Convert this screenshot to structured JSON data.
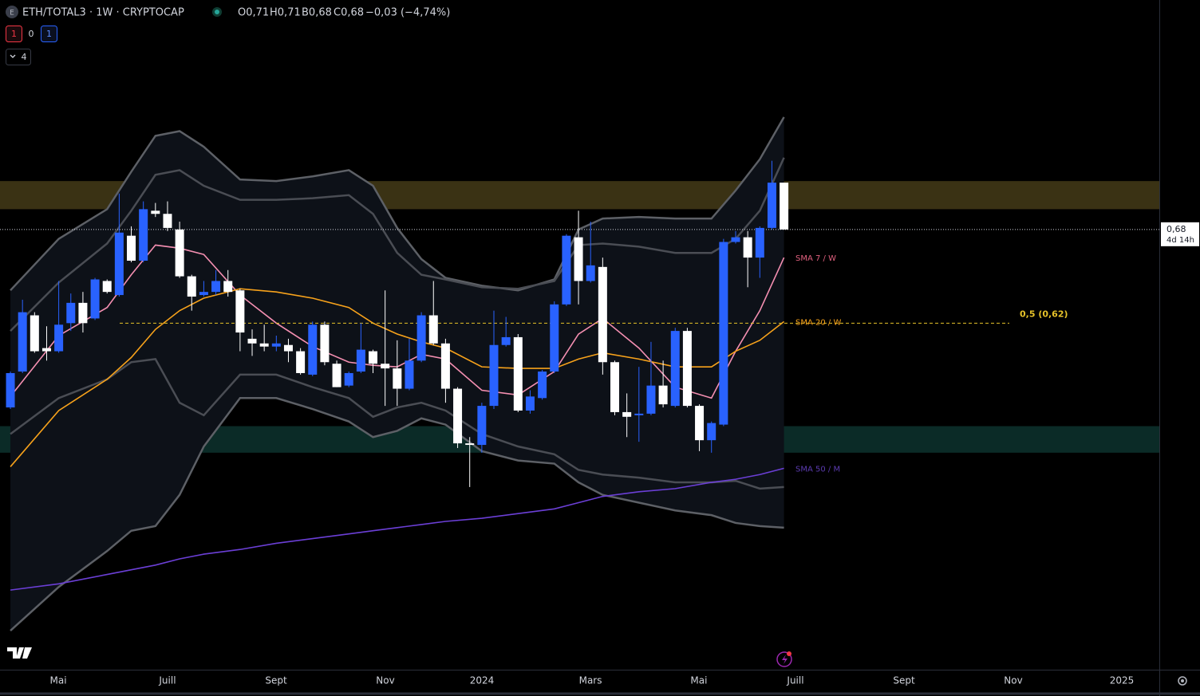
{
  "header": {
    "icon": "E",
    "symbol": "ETH/TOTAL3 · 1W · CRYPTOCAP",
    "ohlc": [
      "O0,71",
      "H0,71",
      "B0,68",
      "C0,68",
      "−0,03 (−4,74%)"
    ],
    "badges": [
      "1",
      "0",
      "1"
    ],
    "collapsed": "4"
  },
  "chart_data": {
    "type": "candlestick",
    "x": [
      0,
      1,
      2,
      3,
      4,
      5,
      6,
      7,
      8,
      9,
      10,
      11,
      12,
      13,
      14,
      15,
      16,
      17,
      18,
      19,
      20,
      21,
      22,
      23,
      24,
      25,
      26,
      27,
      28,
      29,
      30,
      31,
      32,
      33,
      34,
      35,
      36,
      37,
      38,
      39,
      40,
      41,
      42,
      43,
      44,
      45,
      46,
      47,
      48,
      49,
      50,
      51,
      52,
      53,
      54,
      55,
      56,
      57,
      58,
      59,
      60,
      61,
      62,
      63,
      64
    ],
    "open": [
      0.566,
      0.589,
      0.625,
      0.604,
      0.602,
      0.62,
      0.633,
      0.623,
      0.647,
      0.638,
      0.676,
      0.66,
      0.692,
      0.69,
      0.68,
      0.65,
      0.638,
      0.64,
      0.647,
      0.641,
      0.61,
      0.607,
      0.605,
      0.606,
      0.602,
      0.587,
      0.619,
      0.594,
      0.58,
      0.589,
      0.602,
      0.594,
      0.591,
      0.578,
      0.596,
      0.625,
      0.607,
      0.578,
      0.543,
      0.542,
      0.567,
      0.606,
      0.611,
      0.564,
      0.572,
      0.589,
      0.632,
      0.675,
      0.647,
      0.656,
      0.595,
      0.563,
      0.561,
      0.562,
      0.58,
      0.567,
      0.615,
      0.567,
      0.545,
      0.555,
      0.672,
      0.675,
      0.662,
      0.681,
      0.71
    ],
    "high": [
      0.589,
      0.635,
      0.627,
      0.618,
      0.647,
      0.639,
      0.64,
      0.649,
      0.648,
      0.703,
      0.682,
      0.698,
      0.697,
      0.698,
      0.685,
      0.651,
      0.647,
      0.654,
      0.654,
      0.642,
      0.616,
      0.619,
      0.612,
      0.61,
      0.604,
      0.621,
      0.621,
      0.596,
      0.589,
      0.62,
      0.603,
      0.641,
      0.609,
      0.61,
      0.627,
      0.647,
      0.61,
      0.579,
      0.547,
      0.569,
      0.628,
      0.624,
      0.613,
      0.577,
      0.59,
      0.634,
      0.677,
      0.692,
      0.685,
      0.662,
      0.596,
      0.575,
      0.592,
      0.608,
      0.596,
      0.617,
      0.617,
      0.568,
      0.557,
      0.674,
      0.679,
      0.679,
      0.682,
      0.724,
      0.71
    ],
    "low": [
      0.565,
      0.588,
      0.601,
      0.596,
      0.601,
      0.615,
      0.614,
      0.622,
      0.639,
      0.637,
      0.659,
      0.659,
      0.688,
      0.679,
      0.649,
      0.628,
      0.637,
      0.638,
      0.637,
      0.602,
      0.599,
      0.602,
      0.602,
      0.595,
      0.587,
      0.586,
      0.593,
      0.579,
      0.579,
      0.588,
      0.588,
      0.567,
      0.567,
      0.577,
      0.595,
      0.606,
      0.569,
      0.54,
      0.515,
      0.537,
      0.565,
      0.605,
      0.563,
      0.562,
      0.571,
      0.588,
      0.631,
      0.632,
      0.646,
      0.587,
      0.561,
      0.547,
      0.544,
      0.561,
      0.566,
      0.566,
      0.566,
      0.538,
      0.537,
      0.554,
      0.671,
      0.643,
      0.649,
      0.68,
      0.68
    ],
    "close": [
      0.588,
      0.627,
      0.602,
      0.602,
      0.619,
      0.633,
      0.62,
      0.648,
      0.64,
      0.678,
      0.66,
      0.693,
      0.69,
      0.681,
      0.65,
      0.637,
      0.64,
      0.647,
      0.64,
      0.614,
      0.607,
      0.605,
      0.607,
      0.602,
      0.588,
      0.619,
      0.595,
      0.579,
      0.588,
      0.603,
      0.594,
      0.591,
      0.578,
      0.596,
      0.625,
      0.607,
      0.578,
      0.543,
      0.542,
      0.567,
      0.606,
      0.611,
      0.564,
      0.573,
      0.589,
      0.632,
      0.676,
      0.647,
      0.657,
      0.595,
      0.563,
      0.56,
      0.562,
      0.58,
      0.568,
      0.615,
      0.567,
      0.545,
      0.556,
      0.672,
      0.675,
      0.662,
      0.681,
      0.71,
      0.68
    ],
    "up_color": "#2962ff",
    "down_color": "#ffffff",
    "xlim": [
      -0.86,
      95.05
    ],
    "xticks": [
      {
        "value": 3.96,
        "label": "Mai"
      },
      {
        "value": 13.0,
        "label": "Juill"
      },
      {
        "value": 21.98,
        "label": "Sept"
      },
      {
        "value": 31.02,
        "label": "Nov"
      },
      {
        "value": 39.01,
        "label": "2024"
      },
      {
        "value": 47.99,
        "label": "Mars"
      },
      {
        "value": 56.96,
        "label": "Mai"
      },
      {
        "value": 64.95,
        "label": "Juill"
      },
      {
        "value": 73.93,
        "label": "Sept"
      },
      {
        "value": 82.97,
        "label": "Nov"
      },
      {
        "value": 91.95,
        "label": "2025"
      }
    ],
    "ylim": [
      0.398,
      0.827
    ],
    "zones": [
      {
        "from": 0.693,
        "to": 0.711,
        "color": "#3a3214"
      },
      {
        "from": 0.537,
        "to": 0.554,
        "color": "#0b2b27"
      }
    ],
    "bands": [
      {
        "color": "#5d6066",
        "fill": "#0d1118",
        "x": [
          0,
          4,
          8,
          10,
          12,
          14,
          16,
          19,
          22,
          25,
          28,
          30,
          32,
          34,
          36,
          39,
          42,
          45,
          47,
          49,
          52,
          55,
          58,
          60,
          62,
          64
        ],
        "upper": [
          0.641,
          0.674,
          0.693,
          0.717,
          0.74,
          0.743,
          0.733,
          0.712,
          0.711,
          0.714,
          0.718,
          0.708,
          0.681,
          0.661,
          0.649,
          0.644,
          0.641,
          0.648,
          0.68,
          0.687,
          0.688,
          0.687,
          0.687,
          0.705,
          0.725,
          0.752
        ],
        "lower": [
          0.423,
          0.451,
          0.474,
          0.487,
          0.49,
          0.51,
          0.541,
          0.572,
          0.572,
          0.565,
          0.557,
          0.547,
          0.551,
          0.559,
          0.555,
          0.538,
          0.532,
          0.53,
          0.518,
          0.51,
          0.505,
          0.5,
          0.497,
          0.492,
          0.49,
          0.489
        ]
      },
      {
        "color": "#4a4d54",
        "fill": "none",
        "x": [
          0,
          4,
          8,
          10,
          12,
          14,
          16,
          19,
          22,
          25,
          28,
          30,
          32,
          34,
          36,
          39,
          42,
          45,
          47,
          49,
          52,
          55,
          58,
          60,
          62,
          64
        ],
        "upper": [
          0.615,
          0.646,
          0.671,
          0.692,
          0.715,
          0.718,
          0.708,
          0.699,
          0.699,
          0.7,
          0.702,
          0.69,
          0.665,
          0.651,
          0.648,
          0.643,
          0.642,
          0.647,
          0.67,
          0.671,
          0.669,
          0.665,
          0.665,
          0.674,
          0.692,
          0.726
        ],
        "lower": [
          0.549,
          0.572,
          0.584,
          0.595,
          0.597,
          0.569,
          0.561,
          0.587,
          0.587,
          0.579,
          0.572,
          0.56,
          0.566,
          0.569,
          0.564,
          0.549,
          0.541,
          0.536,
          0.526,
          0.523,
          0.521,
          0.518,
          0.518,
          0.519,
          0.514,
          0.515
        ]
      }
    ],
    "series": [
      {
        "name": "SMA 7 / W",
        "color": "#f48fb1",
        "label_color": "#e0607e",
        "x": [
          0,
          4,
          8,
          10,
          12,
          14,
          16,
          19,
          22,
          25,
          28,
          30,
          32,
          34,
          36,
          39,
          42,
          45,
          47,
          49,
          52,
          55,
          58,
          60,
          62,
          64
        ],
        "values": [
          0.573,
          0.612,
          0.63,
          0.651,
          0.67,
          0.668,
          0.664,
          0.638,
          0.62,
          0.605,
          0.595,
          0.593,
          0.592,
          0.6,
          0.597,
          0.577,
          0.574,
          0.589,
          0.613,
          0.623,
          0.604,
          0.579,
          0.572,
          0.602,
          0.628,
          0.662
        ]
      },
      {
        "name": "SMA 20 / W",
        "color": "#f7a21b",
        "label_color": "#f7a21b",
        "x": [
          0,
          4,
          8,
          10,
          12,
          14,
          16,
          19,
          22,
          25,
          28,
          30,
          32,
          34,
          36,
          39,
          42,
          45,
          47,
          49,
          52,
          55,
          58,
          60,
          62,
          64
        ],
        "values": [
          0.528,
          0.564,
          0.584,
          0.598,
          0.616,
          0.628,
          0.636,
          0.642,
          0.64,
          0.636,
          0.63,
          0.62,
          0.613,
          0.608,
          0.604,
          0.592,
          0.591,
          0.591,
          0.597,
          0.601,
          0.597,
          0.592,
          0.592,
          0.602,
          0.609,
          0.621
        ]
      },
      {
        "name": "SMA 50 / M",
        "color": "#6b3fd6",
        "label_color": "#5b3bb0",
        "x": [
          0,
          4,
          8,
          10,
          12,
          14,
          16,
          19,
          22,
          25,
          28,
          30,
          32,
          34,
          36,
          39,
          42,
          45,
          47,
          49,
          52,
          55,
          58,
          60,
          62,
          64
        ],
        "values": [
          0.449,
          0.453,
          0.459,
          0.462,
          0.465,
          0.469,
          0.472,
          0.475,
          0.479,
          0.482,
          0.485,
          0.487,
          0.489,
          0.491,
          0.493,
          0.495,
          0.498,
          0.501,
          0.505,
          0.509,
          0.512,
          0.514,
          0.518,
          0.52,
          0.523,
          0.527
        ]
      }
    ],
    "fib_level": {
      "value": 0.62,
      "label": "0,5 (0,62)",
      "color": "#e6c229"
    },
    "price_marker": {
      "value": 0.68,
      "label": "0,68",
      "countdown": "4d 14h"
    }
  }
}
